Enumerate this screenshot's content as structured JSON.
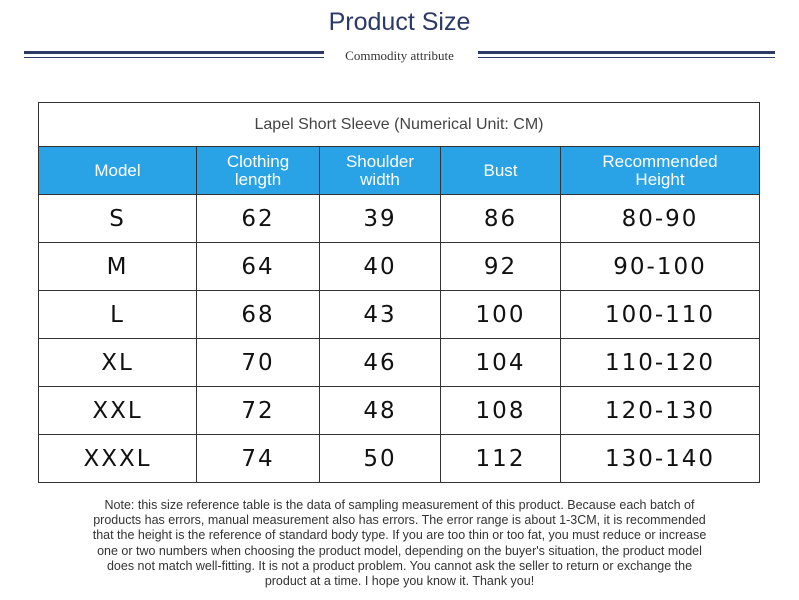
{
  "header": {
    "title": "Product Size",
    "subtitle": "Commodity attribute"
  },
  "table": {
    "caption": "Lapel Short Sleeve (Numerical Unit: CM)",
    "columns": [
      "Model",
      "Clothing length",
      "Shoulder width",
      "Bust",
      "Recommended Height"
    ],
    "rows": [
      [
        "S",
        "62",
        "39",
        "86",
        "80-90"
      ],
      [
        "M",
        "64",
        "40",
        "92",
        "90-100"
      ],
      [
        "L",
        "68",
        "43",
        "100",
        "100-110"
      ],
      [
        "XL",
        "70",
        "46",
        "104",
        "110-120"
      ],
      [
        "XXL",
        "72",
        "48",
        "108",
        "120-130"
      ],
      [
        "XXXL",
        "74",
        "50",
        "112",
        "130-140"
      ]
    ]
  },
  "note": [
    "Note: this size reference table is the data of sampling measurement of this product. Because each batch of",
    "products has errors, manual measurement also has errors. The error range is about 1-3CM, it is recommended",
    "that the height is the reference of standard body type. If you are too thin or too fat, you must reduce or increase",
    "one or two numbers when choosing the product model, depending on the buyer's situation, the product model",
    "does not match well-fitting. It is not a product problem. You cannot ask the seller to return or exchange the",
    "product at a time. I hope you know it. Thank you!"
  ]
}
